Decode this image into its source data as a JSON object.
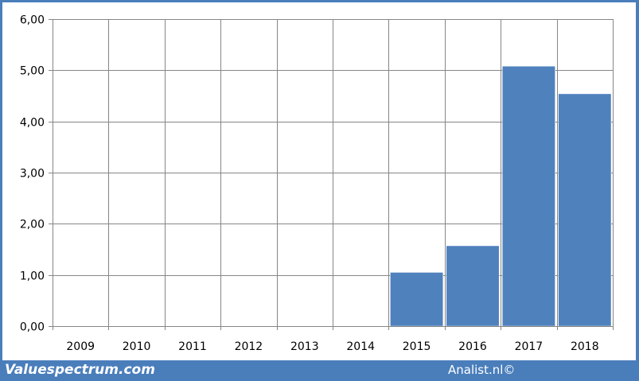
{
  "chart_data": {
    "type": "bar",
    "categories": [
      "2009",
      "2010",
      "2011",
      "2012",
      "2013",
      "2014",
      "2015",
      "2016",
      "2017",
      "2018"
    ],
    "values": [
      0,
      0,
      0,
      0,
      0,
      0,
      1.05,
      1.57,
      5.08,
      4.54
    ],
    "title": "",
    "xlabel": "",
    "ylabel": "",
    "ylim": [
      0,
      6
    ],
    "yticks": [
      "0,00",
      "1,00",
      "2,00",
      "3,00",
      "4,00",
      "5,00",
      "6,00"
    ],
    "grid": true,
    "bar_color": "#4f81bd"
  },
  "footer": {
    "left_text": "Valuespectrum.com",
    "right_text": "Analist.nl©"
  },
  "colors": {
    "frame": "#4a7ebb",
    "background": "#ffffff",
    "gridline": "#868686"
  }
}
